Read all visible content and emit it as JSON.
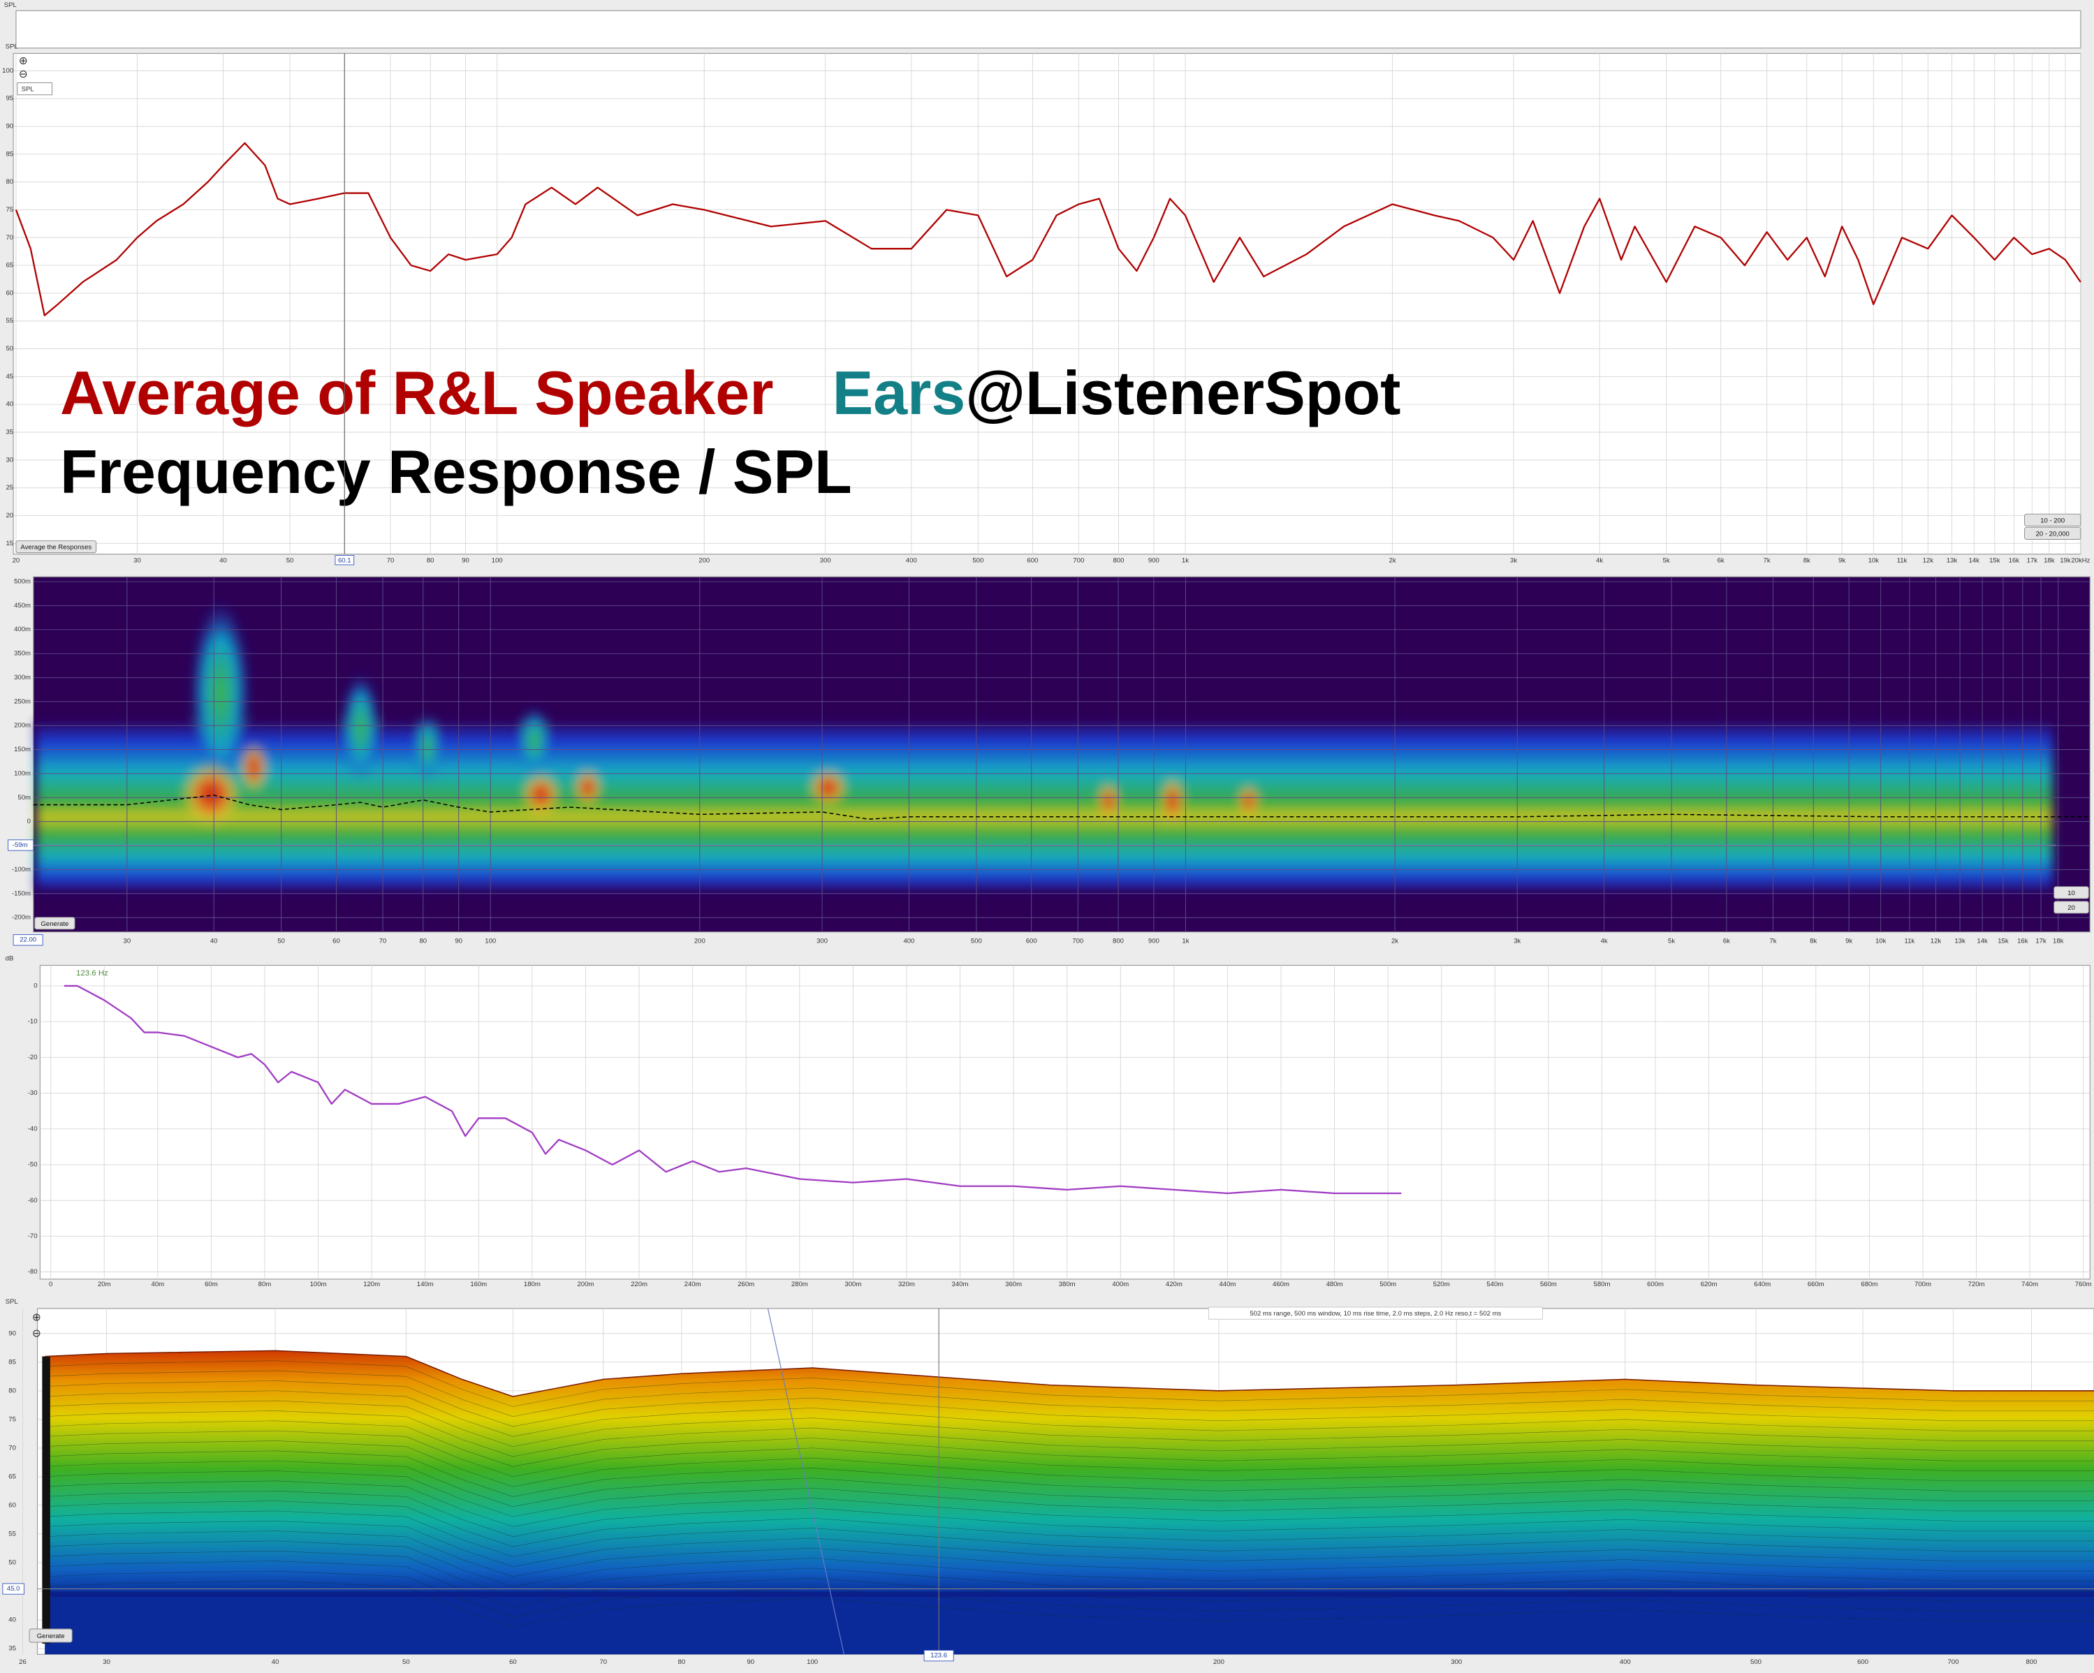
{
  "ui": {
    "top_label": "SPL",
    "fr_combo": "SPL",
    "fr_cursor": "60.1",
    "fr_buttons": [
      "Average the Responses",
      "10 - 200",
      "20 - 20,000"
    ],
    "spectro_buttons": [
      "Generate",
      "10",
      "20"
    ],
    "spectro_cursors": [
      "22.00",
      "-59m"
    ],
    "waterfall_button": "Generate",
    "waterfall_caption": "502 ms range, 500 ms window, 10 ms rise time, 2.0 ms steps, 2.0 Hz reso,t = 502 ms",
    "waterfall_cursors": [
      "45.0",
      "123.6"
    ]
  },
  "chart_data": [
    {
      "type": "line",
      "y_label": "SPL",
      "xscale": "log",
      "grid": true,
      "color": "#b00000",
      "xlim": [
        20,
        20000
      ],
      "ylim": [
        15,
        100
      ],
      "yticks": [
        15,
        20,
        25,
        30,
        35,
        40,
        45,
        50,
        55,
        60,
        65,
        70,
        75,
        80,
        85,
        90,
        95,
        100
      ],
      "xticks": [
        20,
        30,
        40,
        50,
        60,
        70,
        80,
        90,
        100,
        200,
        300,
        400,
        500,
        600,
        700,
        800,
        900,
        {
          "value": 1000,
          "label": "1k"
        },
        {
          "value": 2000,
          "label": "2k"
        },
        {
          "value": 3000,
          "label": "3k"
        },
        {
          "value": 4000,
          "label": "4k"
        },
        {
          "value": 5000,
          "label": "5k"
        },
        {
          "value": 6000,
          "label": "6k"
        },
        {
          "value": 7000,
          "label": "7k"
        },
        {
          "value": 8000,
          "label": "8k"
        },
        {
          "value": 9000,
          "label": "9k"
        },
        {
          "value": 10000,
          "label": "10k"
        },
        {
          "value": 11000,
          "label": "11k"
        },
        {
          "value": 12000,
          "label": "12k"
        },
        {
          "value": 13000,
          "label": "13k"
        },
        {
          "value": 14000,
          "label": "14k"
        },
        {
          "value": 15000,
          "label": "15k"
        },
        {
          "value": 16000,
          "label": "16k"
        },
        {
          "value": 17000,
          "label": "17k"
        },
        {
          "value": 18000,
          "label": "18k"
        },
        {
          "value": 19000,
          "label": "19k"
        },
        {
          "value": 20000,
          "label": "20kHz"
        }
      ],
      "x": [
        20,
        21,
        22,
        23,
        25,
        28,
        30,
        32,
        35,
        38,
        40,
        43,
        46,
        48,
        50,
        55,
        60,
        65,
        70,
        75,
        80,
        85,
        90,
        100,
        105,
        110,
        120,
        130,
        140,
        160,
        180,
        200,
        250,
        300,
        350,
        400,
        450,
        500,
        550,
        600,
        650,
        700,
        750,
        800,
        850,
        900,
        950,
        1000,
        1100,
        1200,
        1300,
        1500,
        1700,
        2000,
        2300,
        2500,
        2800,
        3000,
        3200,
        3500,
        3800,
        4000,
        4300,
        4500,
        5000,
        5500,
        6000,
        6500,
        7000,
        7500,
        8000,
        8500,
        9000,
        9500,
        10000,
        11000,
        12000,
        13000,
        14000,
        15000,
        16000,
        17000,
        18000,
        19000,
        20000
      ],
      "values": [
        75,
        68,
        56,
        58,
        62,
        66,
        70,
        73,
        76,
        80,
        83,
        87,
        83,
        77,
        76,
        77,
        78,
        78,
        70,
        65,
        64,
        67,
        66,
        67,
        70,
        76,
        79,
        76,
        79,
        74,
        76,
        75,
        72,
        73,
        68,
        68,
        75,
        74,
        63,
        66,
        74,
        76,
        77,
        68,
        64,
        70,
        77,
        74,
        62,
        70,
        63,
        67,
        72,
        76,
        74,
        73,
        70,
        66,
        73,
        60,
        72,
        77,
        66,
        72,
        62,
        72,
        70,
        65,
        71,
        66,
        70,
        63,
        72,
        66,
        58,
        70,
        68,
        74,
        70,
        66,
        70,
        67,
        68,
        66,
        62
      ],
      "annotations": [
        {
          "text": "Average of R&L Speaker",
          "color": "#b00000"
        },
        {
          "text": "Ears",
          "color": "#137f86"
        },
        {
          "text": "@ListenerSpot",
          "color": "#000000"
        },
        {
          "text": "Frequency Response / SPL",
          "color": "#000000"
        }
      ]
    },
    {
      "type": "spectrogram",
      "xscale": "log",
      "grid": true,
      "background": "#2d0056",
      "color": "#000000",
      "line_style": "dashed",
      "xlim": [
        22,
        20000
      ],
      "ylim": [
        -0.23,
        0.51
      ],
      "yticks": [
        {
          "value": 0.5,
          "label": "500m"
        },
        {
          "value": 0.45,
          "label": "450m"
        },
        {
          "value": 0.4,
          "label": "400m"
        },
        {
          "value": 0.35,
          "label": "350m"
        },
        {
          "value": 0.3,
          "label": "300m"
        },
        {
          "value": 0.25,
          "label": "250m"
        },
        {
          "value": 0.2,
          "label": "200m"
        },
        {
          "value": 0.15,
          "label": "150m"
        },
        {
          "value": 0.1,
          "label": "100m"
        },
        {
          "value": 0.05,
          "label": "50m"
        },
        0,
        {
          "value": -0.05,
          "label": "-50m"
        },
        {
          "value": -0.1,
          "label": "-100m"
        },
        {
          "value": -0.15,
          "label": "-150m"
        },
        {
          "value": -0.2,
          "label": "-200m"
        }
      ],
      "xticks": [
        30,
        40,
        50,
        60,
        70,
        80,
        90,
        100,
        200,
        300,
        400,
        500,
        600,
        700,
        800,
        900,
        {
          "value": 1000,
          "label": "1k"
        },
        {
          "value": 2000,
          "label": "2k"
        },
        {
          "value": 3000,
          "label": "3k"
        },
        {
          "value": 4000,
          "label": "4k"
        },
        {
          "value": 5000,
          "label": "5k"
        },
        {
          "value": 6000,
          "label": "6k"
        },
        {
          "value": 7000,
          "label": "7k"
        },
        {
          "value": 8000,
          "label": "8k"
        },
        {
          "value": 9000,
          "label": "9k"
        },
        {
          "value": 10000,
          "label": "10k"
        },
        {
          "value": 11000,
          "label": "11k"
        },
        {
          "value": 12000,
          "label": "12k"
        },
        {
          "value": 13000,
          "label": "13k"
        },
        {
          "value": 14000,
          "label": "14k"
        },
        {
          "value": 15000,
          "label": "15k"
        },
        {
          "value": 16000,
          "label": "16k"
        },
        {
          "value": 17000,
          "label": "17k"
        },
        {
          "value": 18000,
          "label": "18k"
        }
      ],
      "x": [
        22,
        30,
        40,
        45,
        50,
        60,
        65,
        70,
        80,
        90,
        100,
        130,
        200,
        300,
        350,
        400,
        1000,
        3000,
        5000,
        10000,
        20000
      ],
      "values": [
        0.035,
        0.035,
        0.055,
        0.035,
        0.025,
        0.035,
        0.04,
        0.03,
        0.045,
        0.03,
        0.02,
        0.03,
        0.015,
        0.02,
        0.005,
        0.01,
        0.01,
        0.01,
        0.015,
        0.01,
        0.01
      ]
    },
    {
      "type": "line",
      "y_label": "dB",
      "grid": true,
      "color": "#a13cc4",
      "xlim": [
        0,
        0.76
      ],
      "ylim": [
        -82,
        5
      ],
      "yticks": [
        0,
        -10,
        -20,
        -30,
        -40,
        -50,
        -60,
        -70,
        -80
      ],
      "xticks": [
        0,
        {
          "value": 0.02,
          "label": "20m"
        },
        {
          "value": 0.04,
          "label": "40m"
        },
        {
          "value": 0.06,
          "label": "60m"
        },
        {
          "value": 0.08,
          "label": "80m"
        },
        {
          "value": 0.1,
          "label": "100m"
        },
        {
          "value": 0.12,
          "label": "120m"
        },
        {
          "value": 0.14,
          "label": "140m"
        },
        {
          "value": 0.16,
          "label": "160m"
        },
        {
          "value": 0.18,
          "label": "180m"
        },
        {
          "value": 0.2,
          "label": "200m"
        },
        {
          "value": 0.22,
          "label": "220m"
        },
        {
          "value": 0.24,
          "label": "240m"
        },
        {
          "value": 0.26,
          "label": "260m"
        },
        {
          "value": 0.28,
          "label": "280m"
        },
        {
          "value": 0.3,
          "label": "300m"
        },
        {
          "value": 0.32,
          "label": "320m"
        },
        {
          "value": 0.34,
          "label": "340m"
        },
        {
          "value": 0.36,
          "label": "360m"
        },
        {
          "value": 0.38,
          "label": "380m"
        },
        {
          "value": 0.4,
          "label": "400m"
        },
        {
          "value": 0.42,
          "label": "420m"
        },
        {
          "value": 0.44,
          "label": "440m"
        },
        {
          "value": 0.46,
          "label": "460m"
        },
        {
          "value": 0.48,
          "label": "480m"
        },
        {
          "value": 0.5,
          "label": "500m"
        },
        {
          "value": 0.52,
          "label": "520m"
        },
        {
          "value": 0.54,
          "label": "540m"
        },
        {
          "value": 0.56,
          "label": "560m"
        },
        {
          "value": 0.58,
          "label": "580m"
        },
        {
          "value": 0.6,
          "label": "600m"
        },
        {
          "value": 0.62,
          "label": "620m"
        },
        {
          "value": 0.64,
          "label": "640m"
        },
        {
          "value": 0.66,
          "label": "660m"
        },
        {
          "value": 0.68,
          "label": "680m"
        },
        {
          "value": 0.7,
          "label": "700m"
        },
        {
          "value": 0.72,
          "label": "720m"
        },
        {
          "value": 0.74,
          "label": "740m"
        },
        {
          "value": 0.76,
          "label": "760m"
        }
      ],
      "x": [
        0.005,
        0.01,
        0.02,
        0.03,
        0.035,
        0.04,
        0.05,
        0.06,
        0.07,
        0.075,
        0.08,
        0.085,
        0.09,
        0.1,
        0.105,
        0.11,
        0.12,
        0.13,
        0.14,
        0.15,
        0.155,
        0.16,
        0.17,
        0.18,
        0.185,
        0.19,
        0.2,
        0.21,
        0.22,
        0.23,
        0.24,
        0.25,
        0.26,
        0.28,
        0.3,
        0.32,
        0.34,
        0.36,
        0.38,
        0.4,
        0.42,
        0.44,
        0.46,
        0.48,
        0.505
      ],
      "values": [
        0,
        0,
        -4,
        -9,
        -13,
        -13,
        -14,
        -17,
        -20,
        -19,
        -22,
        -27,
        -24,
        -27,
        -33,
        -29,
        -33,
        -33,
        -31,
        -35,
        -42,
        -37,
        -37,
        -41,
        -47,
        -43,
        -46,
        -50,
        -46,
        -52,
        -49,
        -52,
        -51,
        -54,
        -55,
        -54,
        -56,
        -56,
        -57,
        -56,
        -57,
        -58,
        -57,
        -58,
        -58
      ],
      "annotations": [
        {
          "text": "123.6 Hz",
          "color": "#4b8a3c"
        }
      ]
    },
    {
      "type": "waterfall",
      "y_label": "SPL",
      "xscale": "log",
      "grid": true,
      "color": "#7a1a00",
      "xlim": [
        26,
        890
      ],
      "ylim": [
        34,
        92.5
      ],
      "yticks": [
        35,
        40,
        45,
        50,
        55,
        60,
        65,
        70,
        75,
        80,
        85,
        90
      ],
      "xticks": [
        26,
        30,
        40,
        50,
        60,
        70,
        80,
        90,
        100,
        200,
        300,
        400,
        500,
        600,
        700,
        800
      ],
      "x": [
        27,
        30,
        40,
        50,
        55,
        60,
        70,
        80,
        100,
        150,
        200,
        300,
        400,
        500,
        700,
        890
      ],
      "values": [
        86,
        86.5,
        87,
        86,
        82,
        79,
        82,
        83,
        84,
        81,
        80,
        81,
        82,
        81,
        80,
        80
      ]
    }
  ]
}
